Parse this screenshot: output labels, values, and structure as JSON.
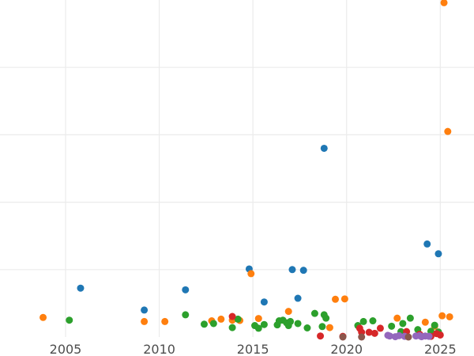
{
  "chart_data": {
    "type": "scatter",
    "title": "",
    "xlabel": "",
    "ylabel": "",
    "grid": true,
    "legend": "none",
    "xlim": [
      2001.5,
      2026.8
    ],
    "ylim": [
      0,
      1000
    ],
    "xticks": [
      2005,
      2010,
      2015,
      2020,
      2025
    ],
    "x_tick_labels": [
      "2005",
      "2010",
      "2015",
      "2020",
      "2025"
    ],
    "yticks": [
      200,
      400,
      600,
      800
    ],
    "series": [
      {
        "color": "#1f77b4",
        "points": [
          [
            2005.8,
            145
          ],
          [
            2009.2,
            80
          ],
          [
            2011.4,
            140
          ],
          [
            2014.8,
            202
          ],
          [
            2015.6,
            104
          ],
          [
            2017.1,
            200
          ],
          [
            2017.4,
            115
          ],
          [
            2017.7,
            198
          ],
          [
            2018.8,
            560
          ],
          [
            2024.3,
            276
          ],
          [
            2024.9,
            247
          ]
        ]
      },
      {
        "color": "#ff7f0e",
        "points": [
          [
            2003.8,
            58
          ],
          [
            2009.2,
            46
          ],
          [
            2010.3,
            46
          ],
          [
            2012.8,
            48
          ],
          [
            2013.3,
            53
          ],
          [
            2013.9,
            50
          ],
          [
            2014.3,
            49
          ],
          [
            2014.9,
            188
          ],
          [
            2015.3,
            55
          ],
          [
            2016.9,
            76
          ],
          [
            2019.1,
            28
          ],
          [
            2019.4,
            112
          ],
          [
            2019.9,
            113
          ],
          [
            2022.7,
            56
          ],
          [
            2024.2,
            44
          ],
          [
            2024.7,
            32
          ],
          [
            2025.1,
            63
          ],
          [
            2025.2,
            992
          ],
          [
            2025.4,
            610
          ],
          [
            2025.5,
            60
          ]
        ]
      },
      {
        "color": "#2ca02c",
        "points": [
          [
            2005.2,
            50
          ],
          [
            2011.4,
            66
          ],
          [
            2012.4,
            38
          ],
          [
            2012.9,
            40
          ],
          [
            2013.9,
            28
          ],
          [
            2014.2,
            53
          ],
          [
            2015.1,
            34
          ],
          [
            2015.3,
            26
          ],
          [
            2015.6,
            37
          ],
          [
            2016.3,
            36
          ],
          [
            2016.4,
            48
          ],
          [
            2016.6,
            50
          ],
          [
            2016.8,
            42
          ],
          [
            2016.9,
            34
          ],
          [
            2017.0,
            46
          ],
          [
            2017.4,
            40
          ],
          [
            2017.9,
            27
          ],
          [
            2018.3,
            70
          ],
          [
            2018.7,
            31
          ],
          [
            2018.8,
            66
          ],
          [
            2018.9,
            56
          ],
          [
            2020.6,
            34
          ],
          [
            2020.9,
            46
          ],
          [
            2021.4,
            48
          ],
          [
            2022.4,
            32
          ],
          [
            2022.9,
            16
          ],
          [
            2023.0,
            40
          ],
          [
            2023.4,
            56
          ],
          [
            2023.8,
            22
          ],
          [
            2024.5,
            17
          ],
          [
            2024.7,
            35
          ],
          [
            2024.9,
            15
          ]
        ]
      },
      {
        "color": "#d62728",
        "points": [
          [
            2013.9,
            61
          ],
          [
            2018.6,
            3
          ],
          [
            2019.8,
            2
          ],
          [
            2020.7,
            26
          ],
          [
            2020.8,
            14
          ],
          [
            2021.2,
            14
          ],
          [
            2021.5,
            11
          ],
          [
            2021.8,
            26
          ],
          [
            2023.2,
            16
          ],
          [
            2023.9,
            8
          ],
          [
            2024.5,
            2
          ],
          [
            2024.8,
            10
          ],
          [
            2025.0,
            6
          ]
        ]
      },
      {
        "color": "#9467bd",
        "points": [
          [
            2022.2,
            5
          ],
          [
            2022.3,
            3
          ],
          [
            2022.6,
            1
          ],
          [
            2022.8,
            4
          ],
          [
            2023.1,
            2
          ],
          [
            2023.7,
            3
          ],
          [
            2023.9,
            4
          ],
          [
            2024.0,
            1
          ],
          [
            2024.2,
            3
          ],
          [
            2024.4,
            2
          ]
        ]
      },
      {
        "color": "#8c564b",
        "points": [
          [
            2019.8,
            0
          ],
          [
            2020.8,
            0
          ],
          [
            2023.3,
            0
          ]
        ]
      }
    ]
  }
}
